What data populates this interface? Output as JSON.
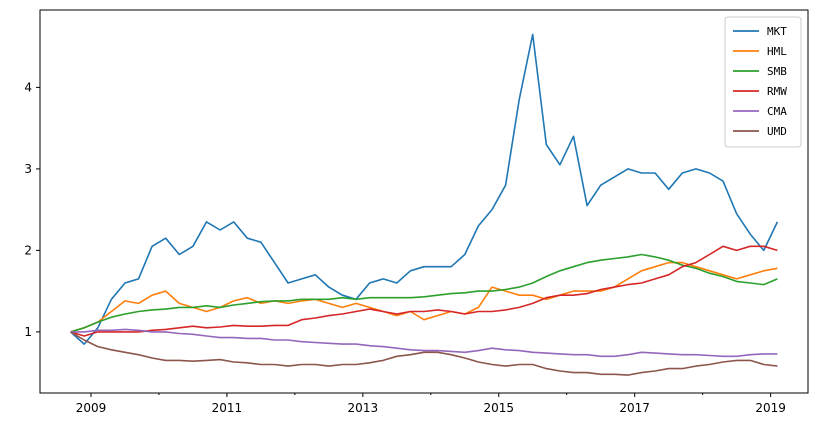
{
  "chart_data": {
    "type": "line",
    "title": "",
    "xlabel": "",
    "ylabel": "",
    "xlim": [
      2008.25,
      2019.55
    ],
    "ylim": [
      0.25,
      4.95
    ],
    "x_ticks": [
      2009,
      2011,
      2013,
      2015,
      2017,
      2019
    ],
    "x_tick_labels": [
      "2009",
      "2011",
      "2013",
      "2015",
      "2017",
      "2019"
    ],
    "x_minor_ticks": [
      2010,
      2012,
      2014,
      2016,
      2018
    ],
    "y_ticks": [
      1,
      2,
      3,
      4
    ],
    "y_tick_labels": [
      "1",
      "2",
      "3",
      "4"
    ],
    "grid": false,
    "legend_position": "top-right",
    "x": [
      2008.7,
      2008.9,
      2009.1,
      2009.3,
      2009.5,
      2009.7,
      2009.9,
      2010.1,
      2010.3,
      2010.5,
      2010.7,
      2010.9,
      2011.1,
      2011.3,
      2011.5,
      2011.7,
      2011.9,
      2012.1,
      2012.3,
      2012.5,
      2012.7,
      2012.9,
      2013.1,
      2013.3,
      2013.5,
      2013.7,
      2013.9,
      2014.1,
      2014.3,
      2014.5,
      2014.7,
      2014.9,
      2015.1,
      2015.3,
      2015.5,
      2015.7,
      2015.9,
      2016.1,
      2016.3,
      2016.5,
      2016.7,
      2016.9,
      2017.1,
      2017.3,
      2017.5,
      2017.7,
      2017.9,
      2018.1,
      2018.3,
      2018.5,
      2018.7,
      2018.9,
      2019.1
    ],
    "series": [
      {
        "name": "MKT",
        "color": "#1f77b4",
        "values": [
          1.0,
          0.85,
          1.05,
          1.4,
          1.6,
          1.65,
          2.05,
          2.15,
          1.95,
          2.05,
          2.35,
          2.25,
          2.35,
          2.15,
          2.1,
          1.85,
          1.6,
          1.65,
          1.7,
          1.55,
          1.45,
          1.4,
          1.6,
          1.65,
          1.6,
          1.75,
          1.8,
          1.8,
          1.8,
          1.95,
          2.3,
          2.5,
          2.8,
          3.85,
          4.65,
          3.3,
          3.05,
          3.4,
          2.55,
          2.8,
          2.9,
          3.0,
          2.95,
          2.95,
          2.75,
          2.95,
          3.0,
          2.95,
          2.85,
          2.45,
          2.2,
          2.0,
          2.35
        ]
      },
      {
        "name": "HML",
        "color": "#ff7f0e",
        "values": [
          1.0,
          1.05,
          1.12,
          1.25,
          1.38,
          1.35,
          1.45,
          1.5,
          1.35,
          1.3,
          1.25,
          1.3,
          1.38,
          1.42,
          1.35,
          1.38,
          1.35,
          1.38,
          1.4,
          1.35,
          1.3,
          1.35,
          1.3,
          1.25,
          1.2,
          1.25,
          1.15,
          1.2,
          1.25,
          1.22,
          1.3,
          1.55,
          1.5,
          1.45,
          1.45,
          1.4,
          1.45,
          1.5,
          1.5,
          1.5,
          1.55,
          1.65,
          1.75,
          1.8,
          1.85,
          1.85,
          1.8,
          1.75,
          1.7,
          1.65,
          1.7,
          1.75,
          1.78
        ]
      },
      {
        "name": "SMB",
        "color": "#2ca02c",
        "values": [
          1.0,
          1.05,
          1.12,
          1.18,
          1.22,
          1.25,
          1.27,
          1.28,
          1.3,
          1.3,
          1.32,
          1.3,
          1.33,
          1.35,
          1.37,
          1.38,
          1.38,
          1.4,
          1.4,
          1.4,
          1.42,
          1.4,
          1.42,
          1.42,
          1.42,
          1.42,
          1.43,
          1.45,
          1.47,
          1.48,
          1.5,
          1.5,
          1.52,
          1.55,
          1.6,
          1.68,
          1.75,
          1.8,
          1.85,
          1.88,
          1.9,
          1.92,
          1.95,
          1.92,
          1.88,
          1.82,
          1.78,
          1.72,
          1.68,
          1.62,
          1.6,
          1.58,
          1.65
        ]
      },
      {
        "name": "RMW",
        "color": "#d62728",
        "values": [
          1.0,
          0.95,
          1.0,
          1.0,
          1.0,
          1.0,
          1.02,
          1.03,
          1.05,
          1.07,
          1.05,
          1.06,
          1.08,
          1.07,
          1.07,
          1.08,
          1.08,
          1.15,
          1.17,
          1.2,
          1.22,
          1.25,
          1.28,
          1.25,
          1.22,
          1.25,
          1.25,
          1.27,
          1.25,
          1.22,
          1.25,
          1.25,
          1.27,
          1.3,
          1.35,
          1.42,
          1.45,
          1.45,
          1.47,
          1.52,
          1.55,
          1.58,
          1.6,
          1.65,
          1.7,
          1.8,
          1.85,
          1.95,
          2.05,
          2.0,
          2.05,
          2.05,
          2.0
        ]
      },
      {
        "name": "CMA",
        "color": "#9467bd",
        "values": [
          1.0,
          1.0,
          1.02,
          1.02,
          1.03,
          1.02,
          1.0,
          1.0,
          0.98,
          0.97,
          0.95,
          0.93,
          0.93,
          0.92,
          0.92,
          0.9,
          0.9,
          0.88,
          0.87,
          0.86,
          0.85,
          0.85,
          0.83,
          0.82,
          0.8,
          0.78,
          0.77,
          0.77,
          0.76,
          0.75,
          0.77,
          0.8,
          0.78,
          0.77,
          0.75,
          0.74,
          0.73,
          0.72,
          0.72,
          0.7,
          0.7,
          0.72,
          0.75,
          0.74,
          0.73,
          0.72,
          0.72,
          0.71,
          0.7,
          0.7,
          0.72,
          0.73,
          0.73
        ]
      },
      {
        "name": "UMD",
        "color": "#8c564b",
        "values": [
          1.0,
          0.9,
          0.82,
          0.78,
          0.75,
          0.72,
          0.68,
          0.65,
          0.65,
          0.64,
          0.65,
          0.66,
          0.63,
          0.62,
          0.6,
          0.6,
          0.58,
          0.6,
          0.6,
          0.58,
          0.6,
          0.6,
          0.62,
          0.65,
          0.7,
          0.72,
          0.75,
          0.75,
          0.72,
          0.68,
          0.63,
          0.6,
          0.58,
          0.6,
          0.6,
          0.55,
          0.52,
          0.5,
          0.5,
          0.48,
          0.48,
          0.47,
          0.5,
          0.52,
          0.55,
          0.55,
          0.58,
          0.6,
          0.63,
          0.65,
          0.65,
          0.6,
          0.58
        ]
      }
    ]
  }
}
